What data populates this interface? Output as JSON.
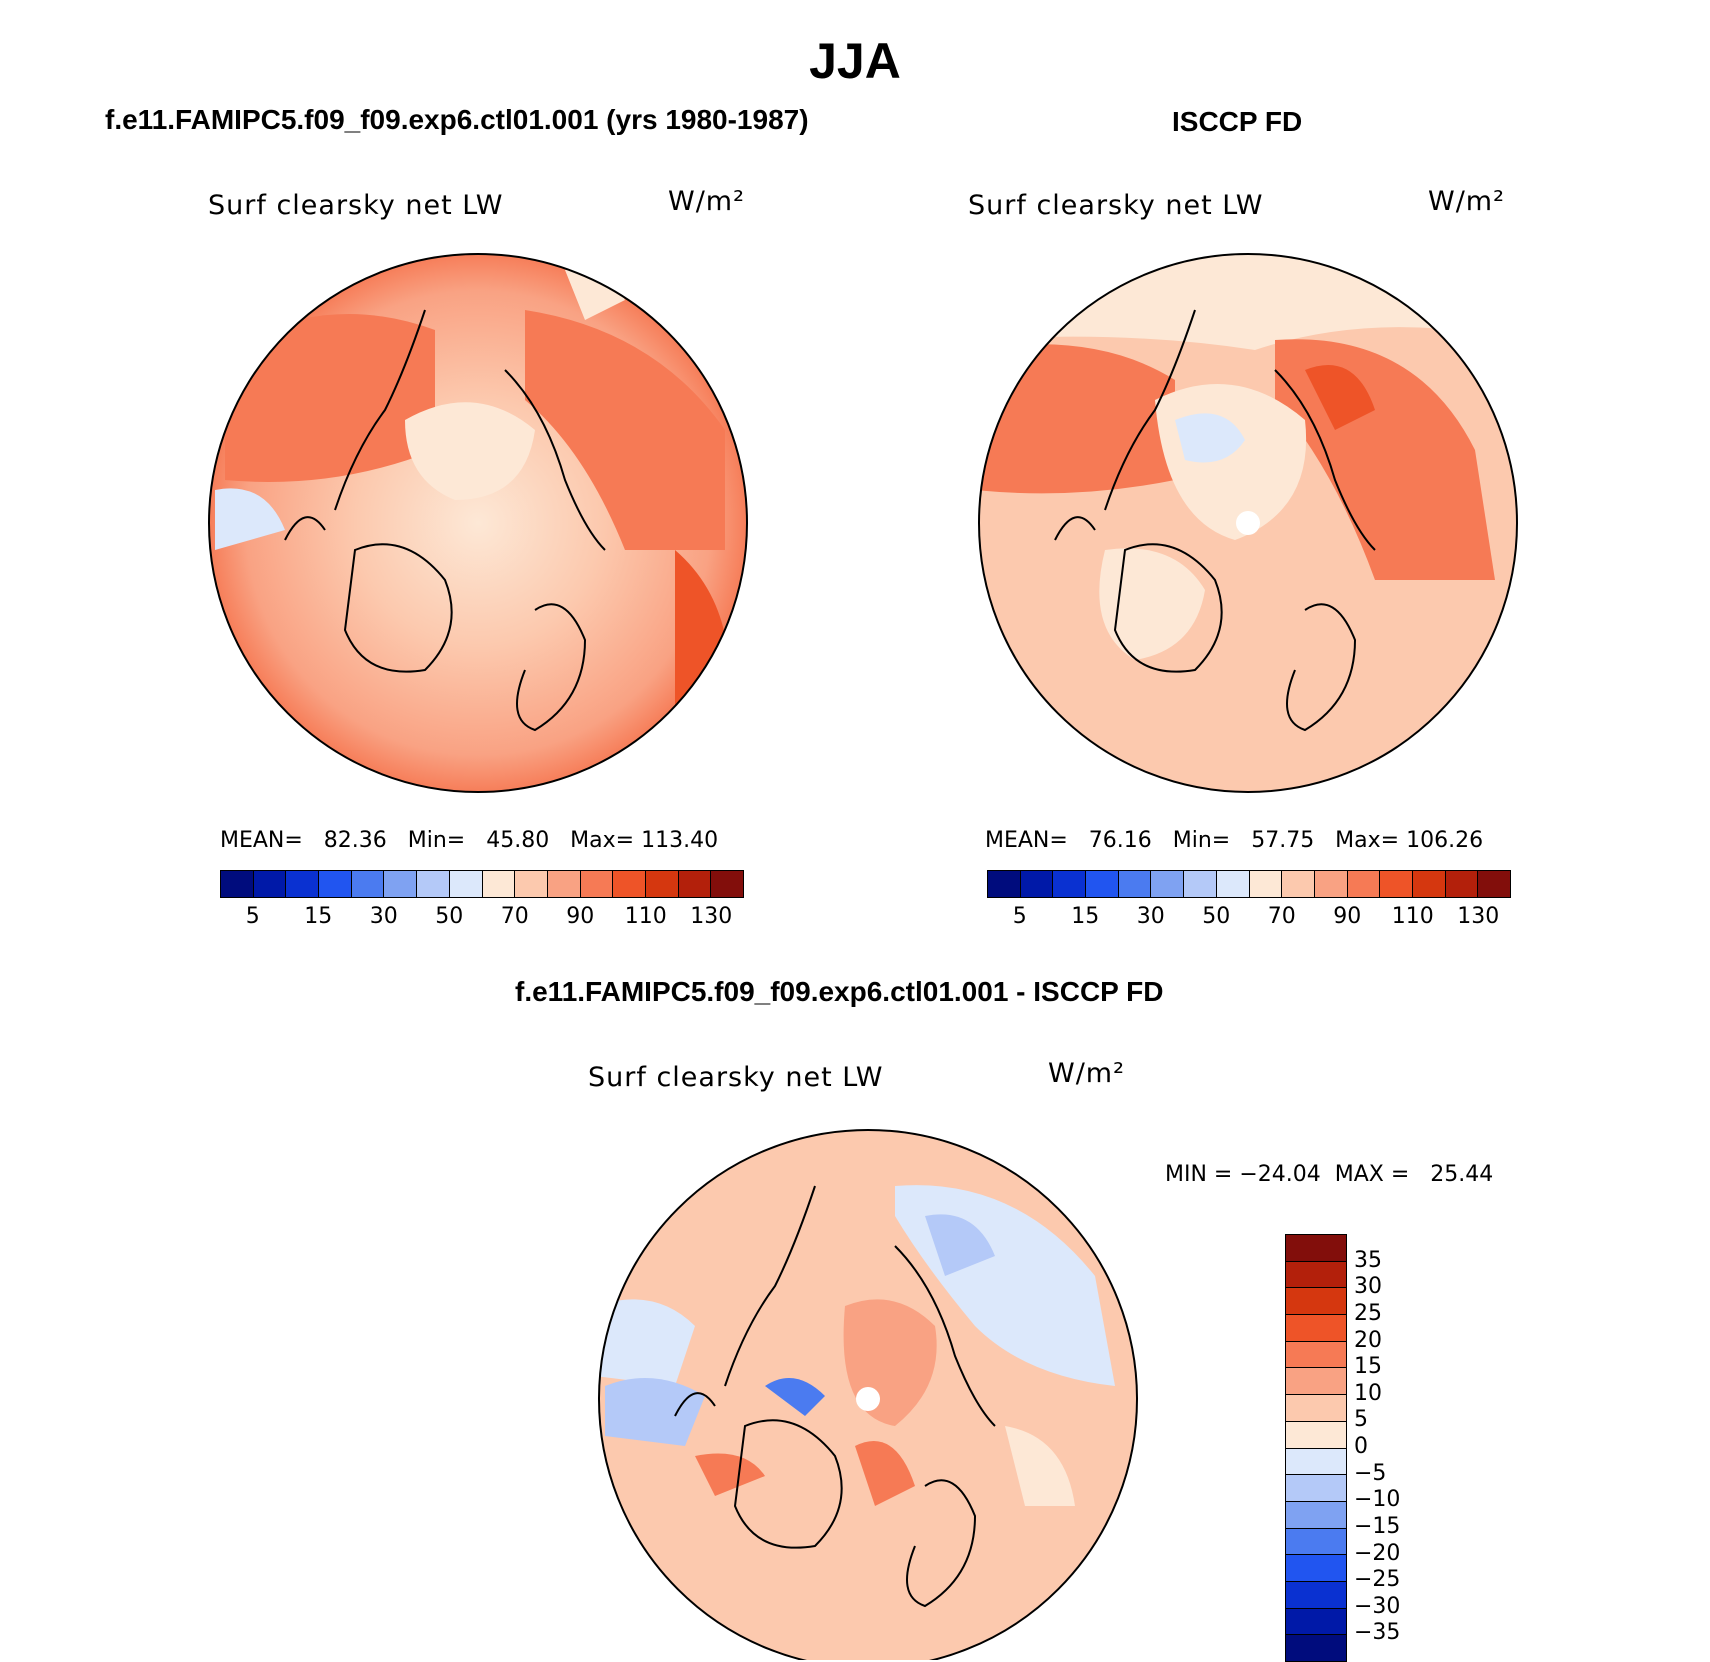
{
  "title": "JJA",
  "panels": {
    "model": {
      "title": "f.e11.FAMIPC5.f09_f09.exp6.ctl01.001 (yrs 1980-1987)",
      "variable": "Surf clearsky net LW",
      "units": "W/m²",
      "stats": "MEAN=   82.36   Min=   45.80   Max= 113.40"
    },
    "obs": {
      "title": "ISCCP FD",
      "variable": "Surf clearsky net LW",
      "units": "W/m²",
      "stats": "MEAN=   76.16   Min=   57.75   Max= 106.26"
    },
    "diff": {
      "title": "f.e11.FAMIPC5.f09_f09.exp6.ctl01.001 - ISCCP FD",
      "variable": "Surf clearsky net LW",
      "units": "W/m²",
      "stats": "MIN = −24.04  MAX =   25.44"
    }
  },
  "colorbar_abs": {
    "colors": [
      "#000c7d",
      "#0019a8",
      "#0a31d1",
      "#2155f0",
      "#4b7bf0",
      "#7fa2f2",
      "#b4c9f8",
      "#dce8fb",
      "#fde8d6",
      "#fcc9ae",
      "#f9a283",
      "#f67a55",
      "#ee5428",
      "#d5370f",
      "#b3200b",
      "#820e0b"
    ],
    "labels": [
      "5",
      "15",
      "30",
      "50",
      "70",
      "90",
      "110",
      "130"
    ]
  },
  "colorbar_diff": {
    "colors": [
      "#820e0b",
      "#b3200b",
      "#d5370f",
      "#ee5428",
      "#f67a55",
      "#f9a283",
      "#fcc9ae",
      "#fde8d6",
      "#dce8fb",
      "#b4c9f8",
      "#7fa2f2",
      "#4b7bf0",
      "#2155f0",
      "#0a31d1",
      "#0019a8",
      "#000c7d"
    ],
    "labels": [
      "35",
      "30",
      "25",
      "20",
      "15",
      "10",
      "5",
      "0",
      "−5",
      "−10",
      "−15",
      "−20",
      "−25",
      "−30",
      "−35"
    ]
  }
}
